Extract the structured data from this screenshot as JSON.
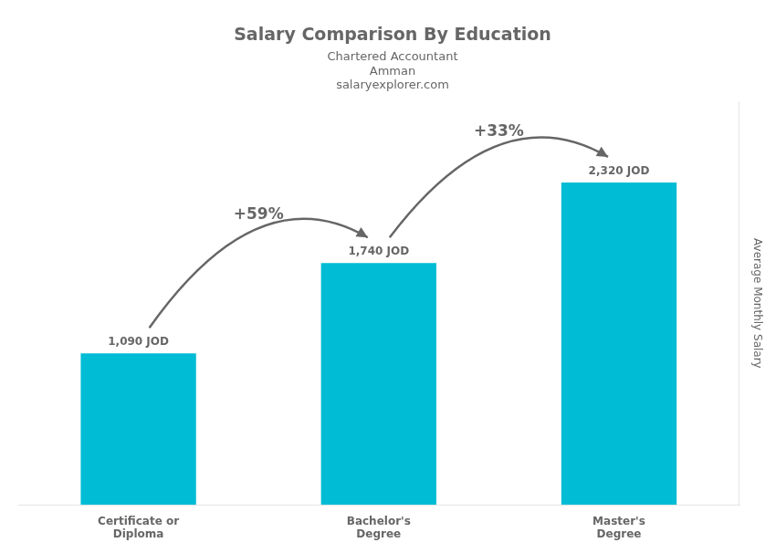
{
  "chart_data": {
    "type": "bar",
    "title": "Salary Comparison By Education",
    "subtitle": "Chartered Accountant",
    "ylabel": "Average Monthly Salary",
    "categories": [
      "Certificate or\nDiploma",
      "Bachelor's\nDegree",
      "Master's\nDegree"
    ],
    "values": [
      1090,
      1740,
      2320
    ],
    "value_labels": [
      "1,090 JOD",
      "1,740 JOD",
      "2,320 JOD"
    ],
    "data_labels": true,
    "color": "#00bcd4",
    "ylim": [
      0,
      2900
    ],
    "grid": false,
    "tick_labels": "x",
    "annotations": [
      {
        "text": "Amman"
      },
      {
        "text": "salaryexplorer.com"
      },
      {
        "text": "+59%",
        "from": "Certificate or\nDiploma",
        "to": "Bachelor's\nDegree"
      },
      {
        "text": "+33%",
        "from": "Bachelor's\nDegree",
        "to": "Master's\nDegree"
      }
    ]
  }
}
